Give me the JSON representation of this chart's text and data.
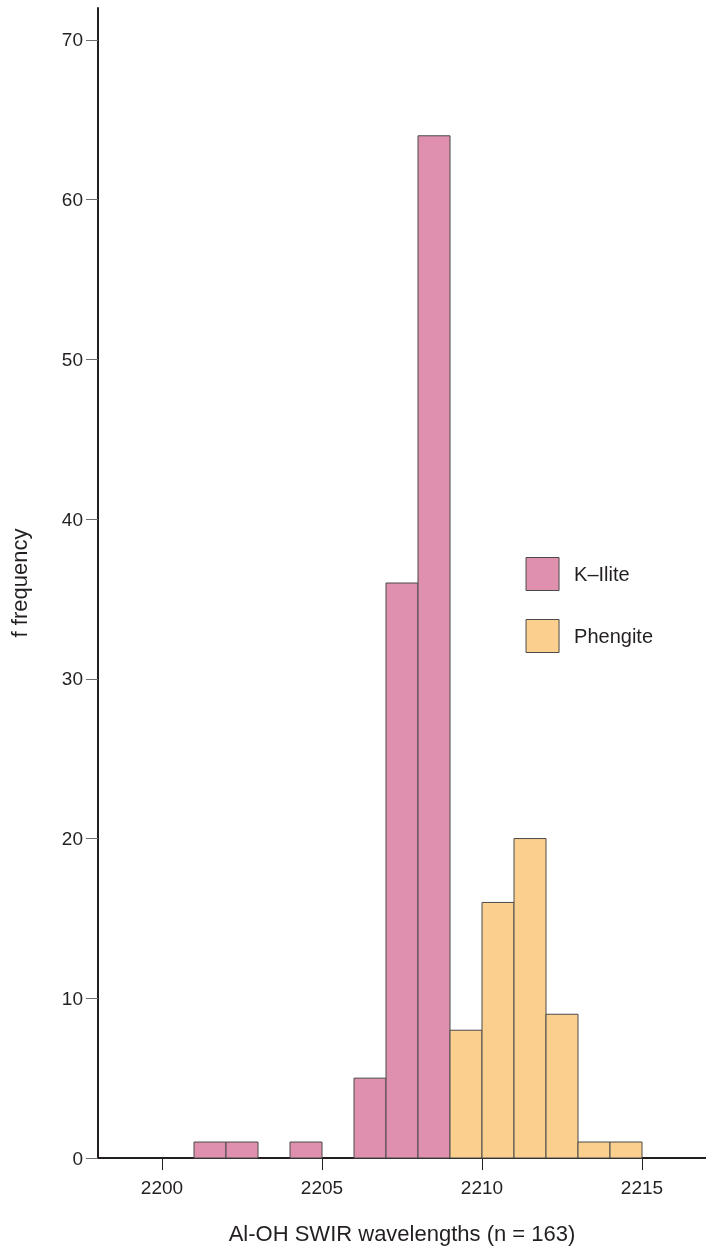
{
  "chart_data": {
    "type": "histogram",
    "xlabel": "Al-OH SWIR wavelengths (n = 163)",
    "ylabel": "f frequency",
    "bins": [
      2201,
      2202,
      2203,
      2204,
      2205,
      2206,
      2207,
      2208,
      2209,
      2210,
      2211,
      2212,
      2213,
      2214,
      2215
    ],
    "series": [
      {
        "name": "K–Ilite",
        "color": "#de90ae",
        "values": [
          1,
          1,
          0,
          1,
          0,
          5,
          36,
          64,
          0,
          0,
          0,
          0,
          0,
          0
        ]
      },
      {
        "name": "Phengite",
        "color": "#fbd08e",
        "values": [
          0,
          0,
          0,
          0,
          0,
          0,
          0,
          0,
          8,
          16,
          20,
          9,
          1,
          1
        ]
      }
    ],
    "xlim": [
      2198,
      2217
    ],
    "ylim": [
      0,
      72
    ],
    "xticks": [
      2200,
      2205,
      2210,
      2215
    ],
    "yticks": [
      0,
      10,
      20,
      30,
      40,
      50,
      60,
      70
    ],
    "legend": "right"
  }
}
